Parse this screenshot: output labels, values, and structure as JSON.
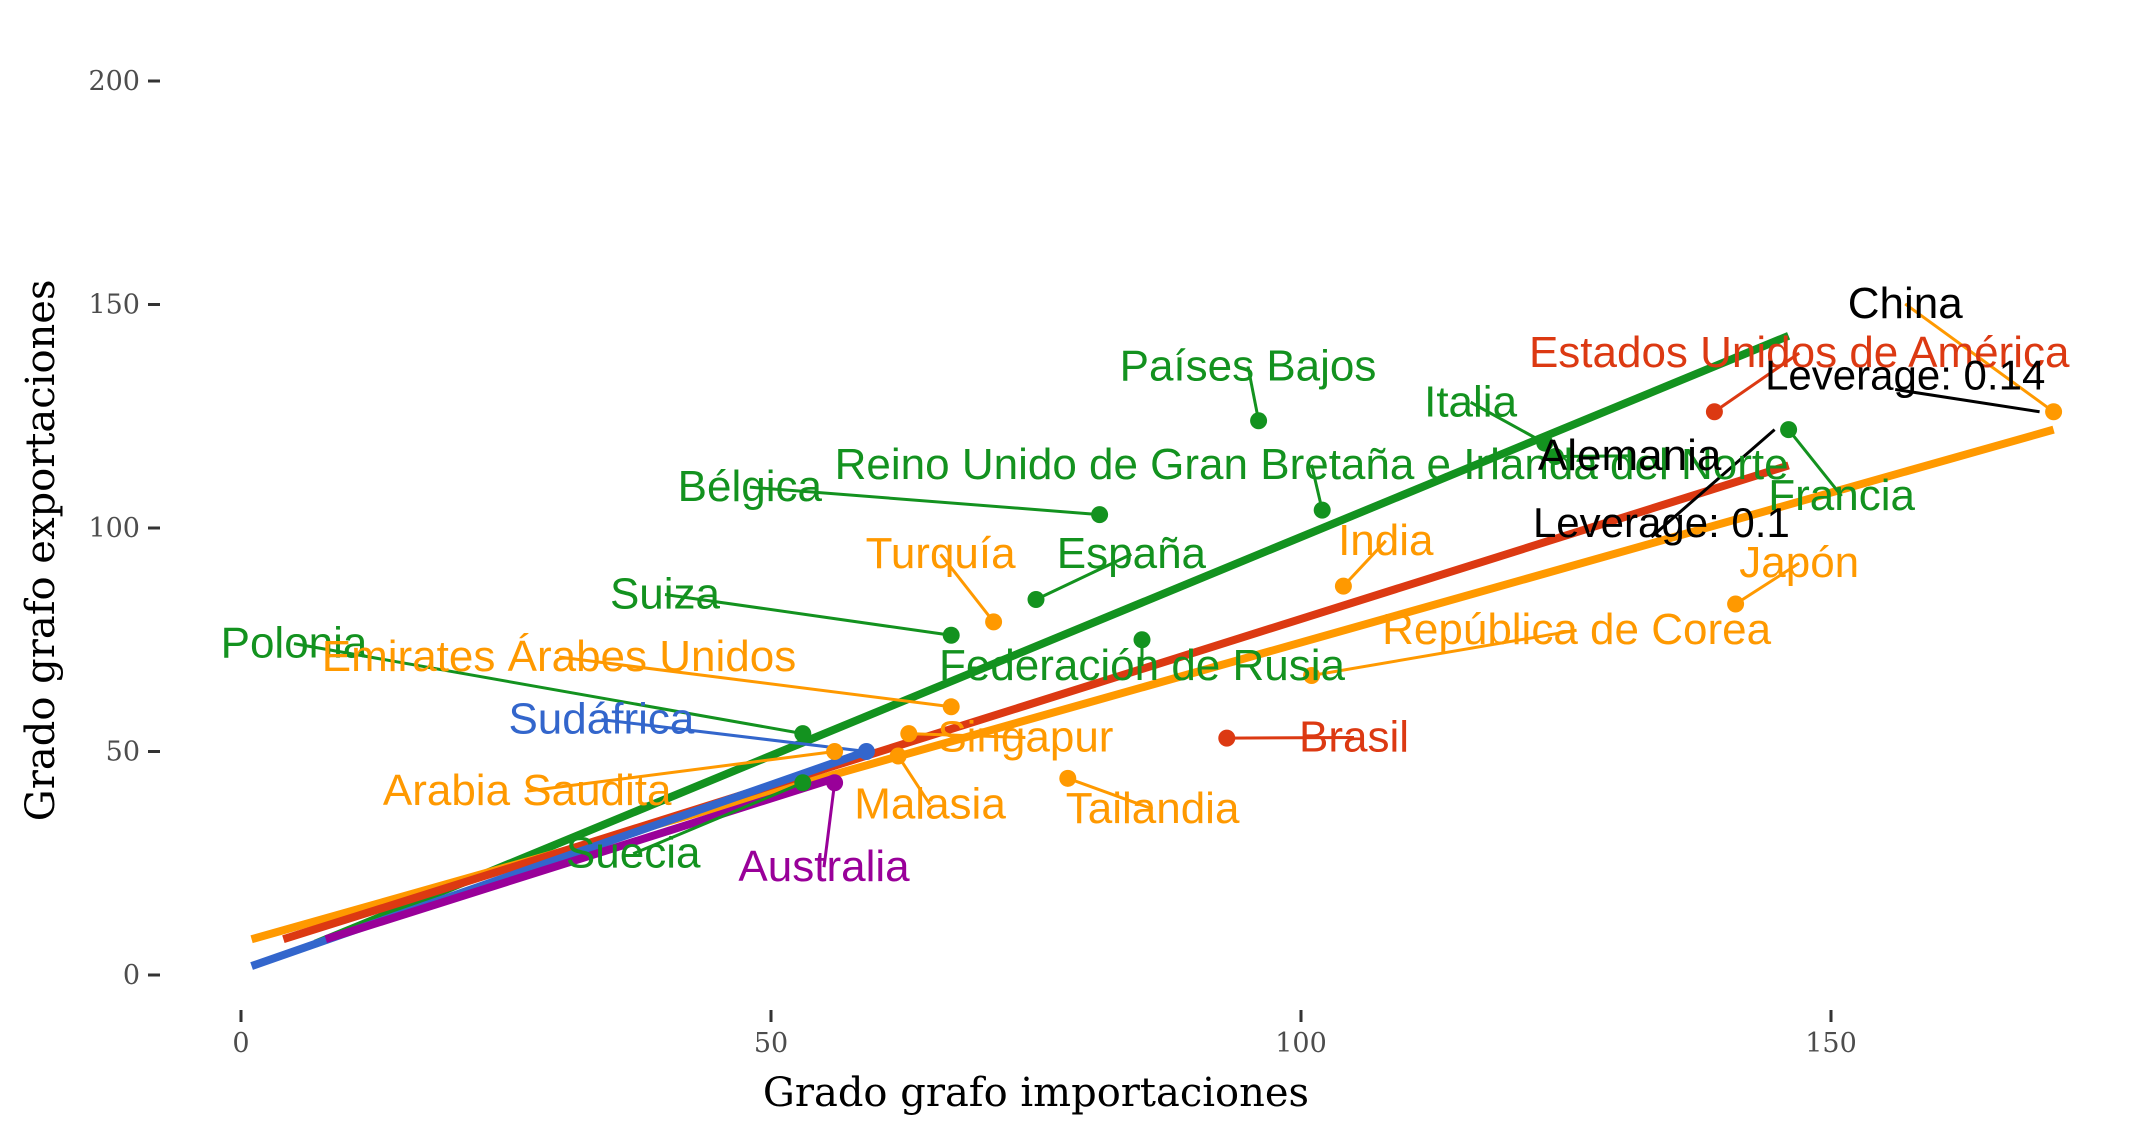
{
  "chart_data": {
    "type": "scatter",
    "title": "",
    "xlabel": "Grado grafo importaciones",
    "ylabel": "Grado grafo exportaciones",
    "xlim": [
      -3,
      178
    ],
    "ylim": [
      -10,
      207
    ],
    "x_ticks": [
      0,
      50,
      100,
      150
    ],
    "y_ticks": [
      0,
      50,
      100,
      150,
      200
    ],
    "grid": false,
    "legend": "none",
    "colors": {
      "europe": "#13921f",
      "asia": "#ff9900",
      "americas": "#dc3912",
      "africa": "#3366cc",
      "oceania": "#990099",
      "annotation": "#000000"
    },
    "series": [
      {
        "color": "#13921f",
        "fit_line": [
          [
            7,
            7
          ],
          [
            146,
            143
          ]
        ],
        "points": [
          {
            "label": "Países Bajos",
            "x": 96,
            "y": 124,
            "label_x": 95,
            "label_y": 133
          },
          {
            "label": "Italia",
            "x": 123,
            "y": 119,
            "label_x": 116,
            "label_y": 125
          },
          {
            "label": "Reino Unido de Gran Bretaña e Irlanda del Norte",
            "x": 102,
            "y": 104,
            "label_x": 101,
            "label_y": 111
          },
          {
            "label": "Bélgica",
            "x": 81,
            "y": 103,
            "label_x": 48,
            "label_y": 106
          },
          {
            "label": "España",
            "x": 75,
            "y": 84,
            "label_x": 84,
            "label_y": 91
          },
          {
            "label": "Suiza",
            "x": 67,
            "y": 76,
            "label_x": 40,
            "label_y": 82
          },
          {
            "label": "Federación de Rusia",
            "x": 85,
            "y": 75,
            "label_x": 85,
            "label_y": 66
          },
          {
            "label": "Polonia",
            "x": 53,
            "y": 54,
            "label_x": 5,
            "label_y": 71
          },
          {
            "label": "Suecia",
            "x": 53,
            "y": 43,
            "label_x": 37,
            "label_y": 24
          },
          {
            "label": "Alemania",
            "x": 124,
            "y": 116,
            "label_x": 131,
            "label_y": 113,
            "label_color": "#000000"
          },
          {
            "label": "Francia",
            "x": 146,
            "y": 122,
            "label_x": 151,
            "label_y": 104
          }
        ]
      },
      {
        "color": "#ff9900",
        "fit_line": [
          [
            1,
            8
          ],
          [
            171,
            122
          ]
        ],
        "points": [
          {
            "label": "India",
            "x": 104,
            "y": 87,
            "label_x": 108,
            "label_y": 94
          },
          {
            "label": "Turquía",
            "x": 71,
            "y": 79,
            "label_x": 66,
            "label_y": 91
          },
          {
            "label": "Japón",
            "x": 141,
            "y": 83,
            "label_x": 147,
            "label_y": 89
          },
          {
            "label": "República de Corea",
            "x": 101,
            "y": 67,
            "label_x": 126,
            "label_y": 74
          },
          {
            "label": "Emirates Árabes Unidos",
            "x": 67,
            "y": 60,
            "label_x": 30,
            "label_y": 68
          },
          {
            "label": "Singapur",
            "x": 63,
            "y": 54,
            "label_x": 74,
            "label_y": 50
          },
          {
            "label": "Arabia Saudita",
            "x": 56,
            "y": 50,
            "label_x": 27,
            "label_y": 38
          },
          {
            "label": "Malasia",
            "x": 62,
            "y": 49,
            "label_x": 65,
            "label_y": 35
          },
          {
            "label": "Tailandia",
            "x": 78,
            "y": 44,
            "label_x": 86,
            "label_y": 34
          },
          {
            "label": "China",
            "x": 171,
            "y": 126,
            "label_x": 157,
            "label_y": 147,
            "label_color": "#000000"
          }
        ]
      },
      {
        "color": "#dc3912",
        "fit_line": [
          [
            4,
            8
          ],
          [
            146,
            114
          ]
        ],
        "points": [
          {
            "label": "Estados Unidos de América",
            "x": 139,
            "y": 126,
            "label_x": 147,
            "label_y": 136
          },
          {
            "label": "Brasil",
            "x": 93,
            "y": 53,
            "label_x": 105,
            "label_y": 50
          }
        ]
      },
      {
        "color": "#3366cc",
        "fit_line": [
          [
            1,
            2
          ],
          [
            59,
            50
          ]
        ],
        "points": [
          {
            "label": "Sudáfrica",
            "x": 59,
            "y": 50,
            "label_x": 34,
            "label_y": 54
          }
        ]
      },
      {
        "color": "#990099",
        "fit_line": [
          [
            8,
            8
          ],
          [
            56,
            44
          ]
        ],
        "points": [
          {
            "label": "Australia",
            "x": 56,
            "y": 43,
            "label_x": 55,
            "label_y": 21
          }
        ]
      }
    ],
    "annotations": [
      {
        "text": "Leverage: 0.14",
        "x": 171,
        "y": 126,
        "label_x": 157,
        "label_y": 131
      },
      {
        "text": "Leverage: 0.1",
        "x": 146,
        "y": 122,
        "label_x": 134,
        "label_y": 98
      }
    ]
  }
}
